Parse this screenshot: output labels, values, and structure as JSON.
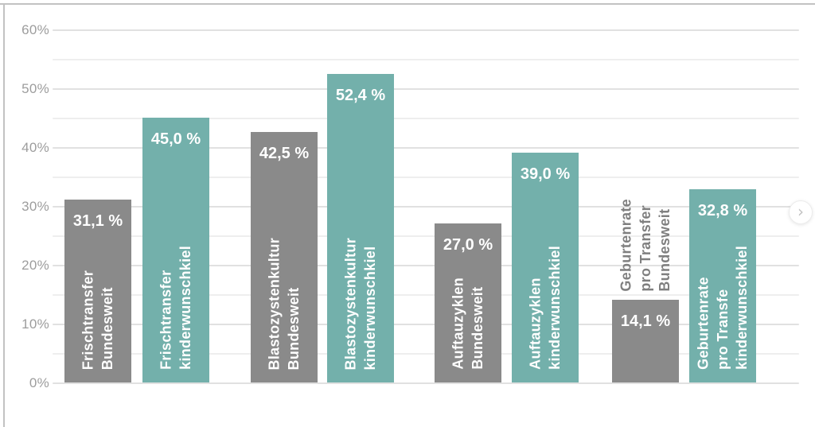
{
  "colors": {
    "bar_bundesweit": "#8a8a8a",
    "bar_kinderwunschkiel": "#73b0ab",
    "value_text": "#ffffff",
    "axis_text": "#9d9d9d",
    "grid_major": "#e1e1e1",
    "grid_minor": "#eeeeee",
    "outside_label_text": "#7f7f7f",
    "border": "#c2c2c2"
  },
  "carousel": {
    "next_icon": "›"
  },
  "axis": {
    "tick_values": [
      0,
      10,
      20,
      30,
      40,
      50,
      60
    ],
    "tick_labels": [
      "0%",
      "10%",
      "20%",
      "30%",
      "40%",
      "50%",
      "60%"
    ],
    "minor_tick_values": [
      5,
      15,
      25,
      35,
      45,
      55
    ]
  },
  "chart_data": {
    "type": "bar",
    "title": "",
    "xlabel": "",
    "ylabel": "",
    "ylim": [
      0,
      60
    ],
    "grid": true,
    "legend_position": "none",
    "value_format": "decimal comma, suffix ' %'",
    "categories": [
      "Frischtransfer",
      "Blastozystenkultur",
      "Auftauzyklen",
      "Geburtenrate pro Transfer"
    ],
    "series": [
      {
        "name": "Bundesweit",
        "values": [
          31.1,
          42.5,
          27.0,
          14.1
        ]
      },
      {
        "name": "kinderwunschkiel",
        "values": [
          45.0,
          52.4,
          39.0,
          32.8
        ]
      }
    ],
    "bars": [
      {
        "value": 31.1,
        "value_label": "31,1 %",
        "label_lines": [
          "Frischtransfer",
          "Bundesweit"
        ],
        "series": "bundesweit",
        "label_placement": "inside"
      },
      {
        "value": 45.0,
        "value_label": "45,0 %",
        "label_lines": [
          "Frischtransfer",
          "kinderwunschkiel"
        ],
        "series": "kinderwunschkiel",
        "label_placement": "inside"
      },
      {
        "value": 42.5,
        "value_label": "42,5 %",
        "label_lines": [
          "Blastozystenkultur",
          "Bundesweit"
        ],
        "series": "bundesweit",
        "label_placement": "inside"
      },
      {
        "value": 52.4,
        "value_label": "52,4 %",
        "label_lines": [
          "Blastozystenkultur",
          "kinderwunschkiel"
        ],
        "series": "kinderwunschkiel",
        "label_placement": "inside"
      },
      {
        "value": 27.0,
        "value_label": "27,0 %",
        "label_lines": [
          "Auftauzyklen",
          "Bundesweit"
        ],
        "series": "bundesweit",
        "label_placement": "inside"
      },
      {
        "value": 39.0,
        "value_label": "39,0 %",
        "label_lines": [
          "Auftauzyklen",
          "kinderwunschkiel"
        ],
        "series": "kinderwunschkiel",
        "label_placement": "inside"
      },
      {
        "value": 14.1,
        "value_label": "14,1 %",
        "label_lines": [
          "Geburtenrate",
          "pro Transfer",
          "Bundesweit"
        ],
        "series": "bundesweit",
        "label_placement": "above"
      },
      {
        "value": 32.8,
        "value_label": "32,8 %",
        "label_lines": [
          "Geburtenrate",
          "pro Transfe",
          "kinderwunschkiel"
        ],
        "series": "kinderwunschkiel",
        "label_placement": "inside"
      }
    ]
  }
}
